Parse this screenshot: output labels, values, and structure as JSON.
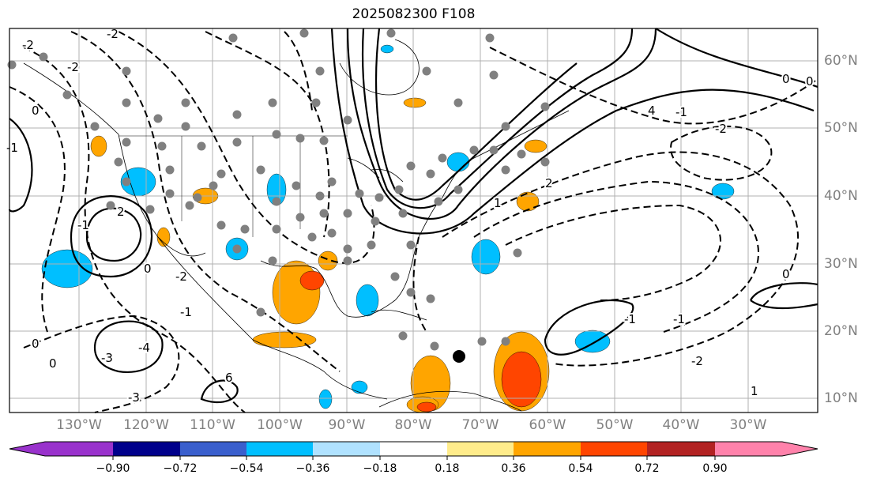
{
  "title": "2025082300 F108",
  "longitude_labels": [
    "130°W",
    "120°W",
    "110°W",
    "100°W",
    "90°W",
    "80°W",
    "70°W",
    "60°W",
    "50°W",
    "40°W",
    "30°W"
  ],
  "latitude_labels": [
    "60°N",
    "50°N",
    "40°N",
    "30°N",
    "20°N",
    "10°N"
  ],
  "colorbar": {
    "tick_labels": [
      "−0.90",
      "−0.72",
      "−0.54",
      "−0.36",
      "−0.18",
      "0.18",
      "0.36",
      "0.54",
      "0.72",
      "0.90"
    ],
    "colors": [
      "#9932CC",
      "#00008B",
      "#3A5FCD",
      "#00BFFF",
      "#B0E2FF",
      "#FFFFFF",
      "#FFEC8B",
      "#FFA500",
      "#FF4500",
      "#B22222",
      "#FF82AB"
    ]
  },
  "contour_labels": [
    "-2",
    "-2",
    "2",
    "0",
    "-1",
    "-2",
    "-1",
    "0",
    "0",
    "-3",
    "-4",
    "-3",
    "6",
    "4",
    "-1",
    "-2",
    "0",
    "0",
    "-1",
    "-2",
    "1",
    "2",
    "-1",
    "0",
    "1",
    "-2",
    "-1",
    "0"
  ],
  "fill_colors": {
    "negative": "#00BFFF",
    "positive": "#FFA500",
    "strong_positive": "#FF4500",
    "station": "#808080"
  }
}
